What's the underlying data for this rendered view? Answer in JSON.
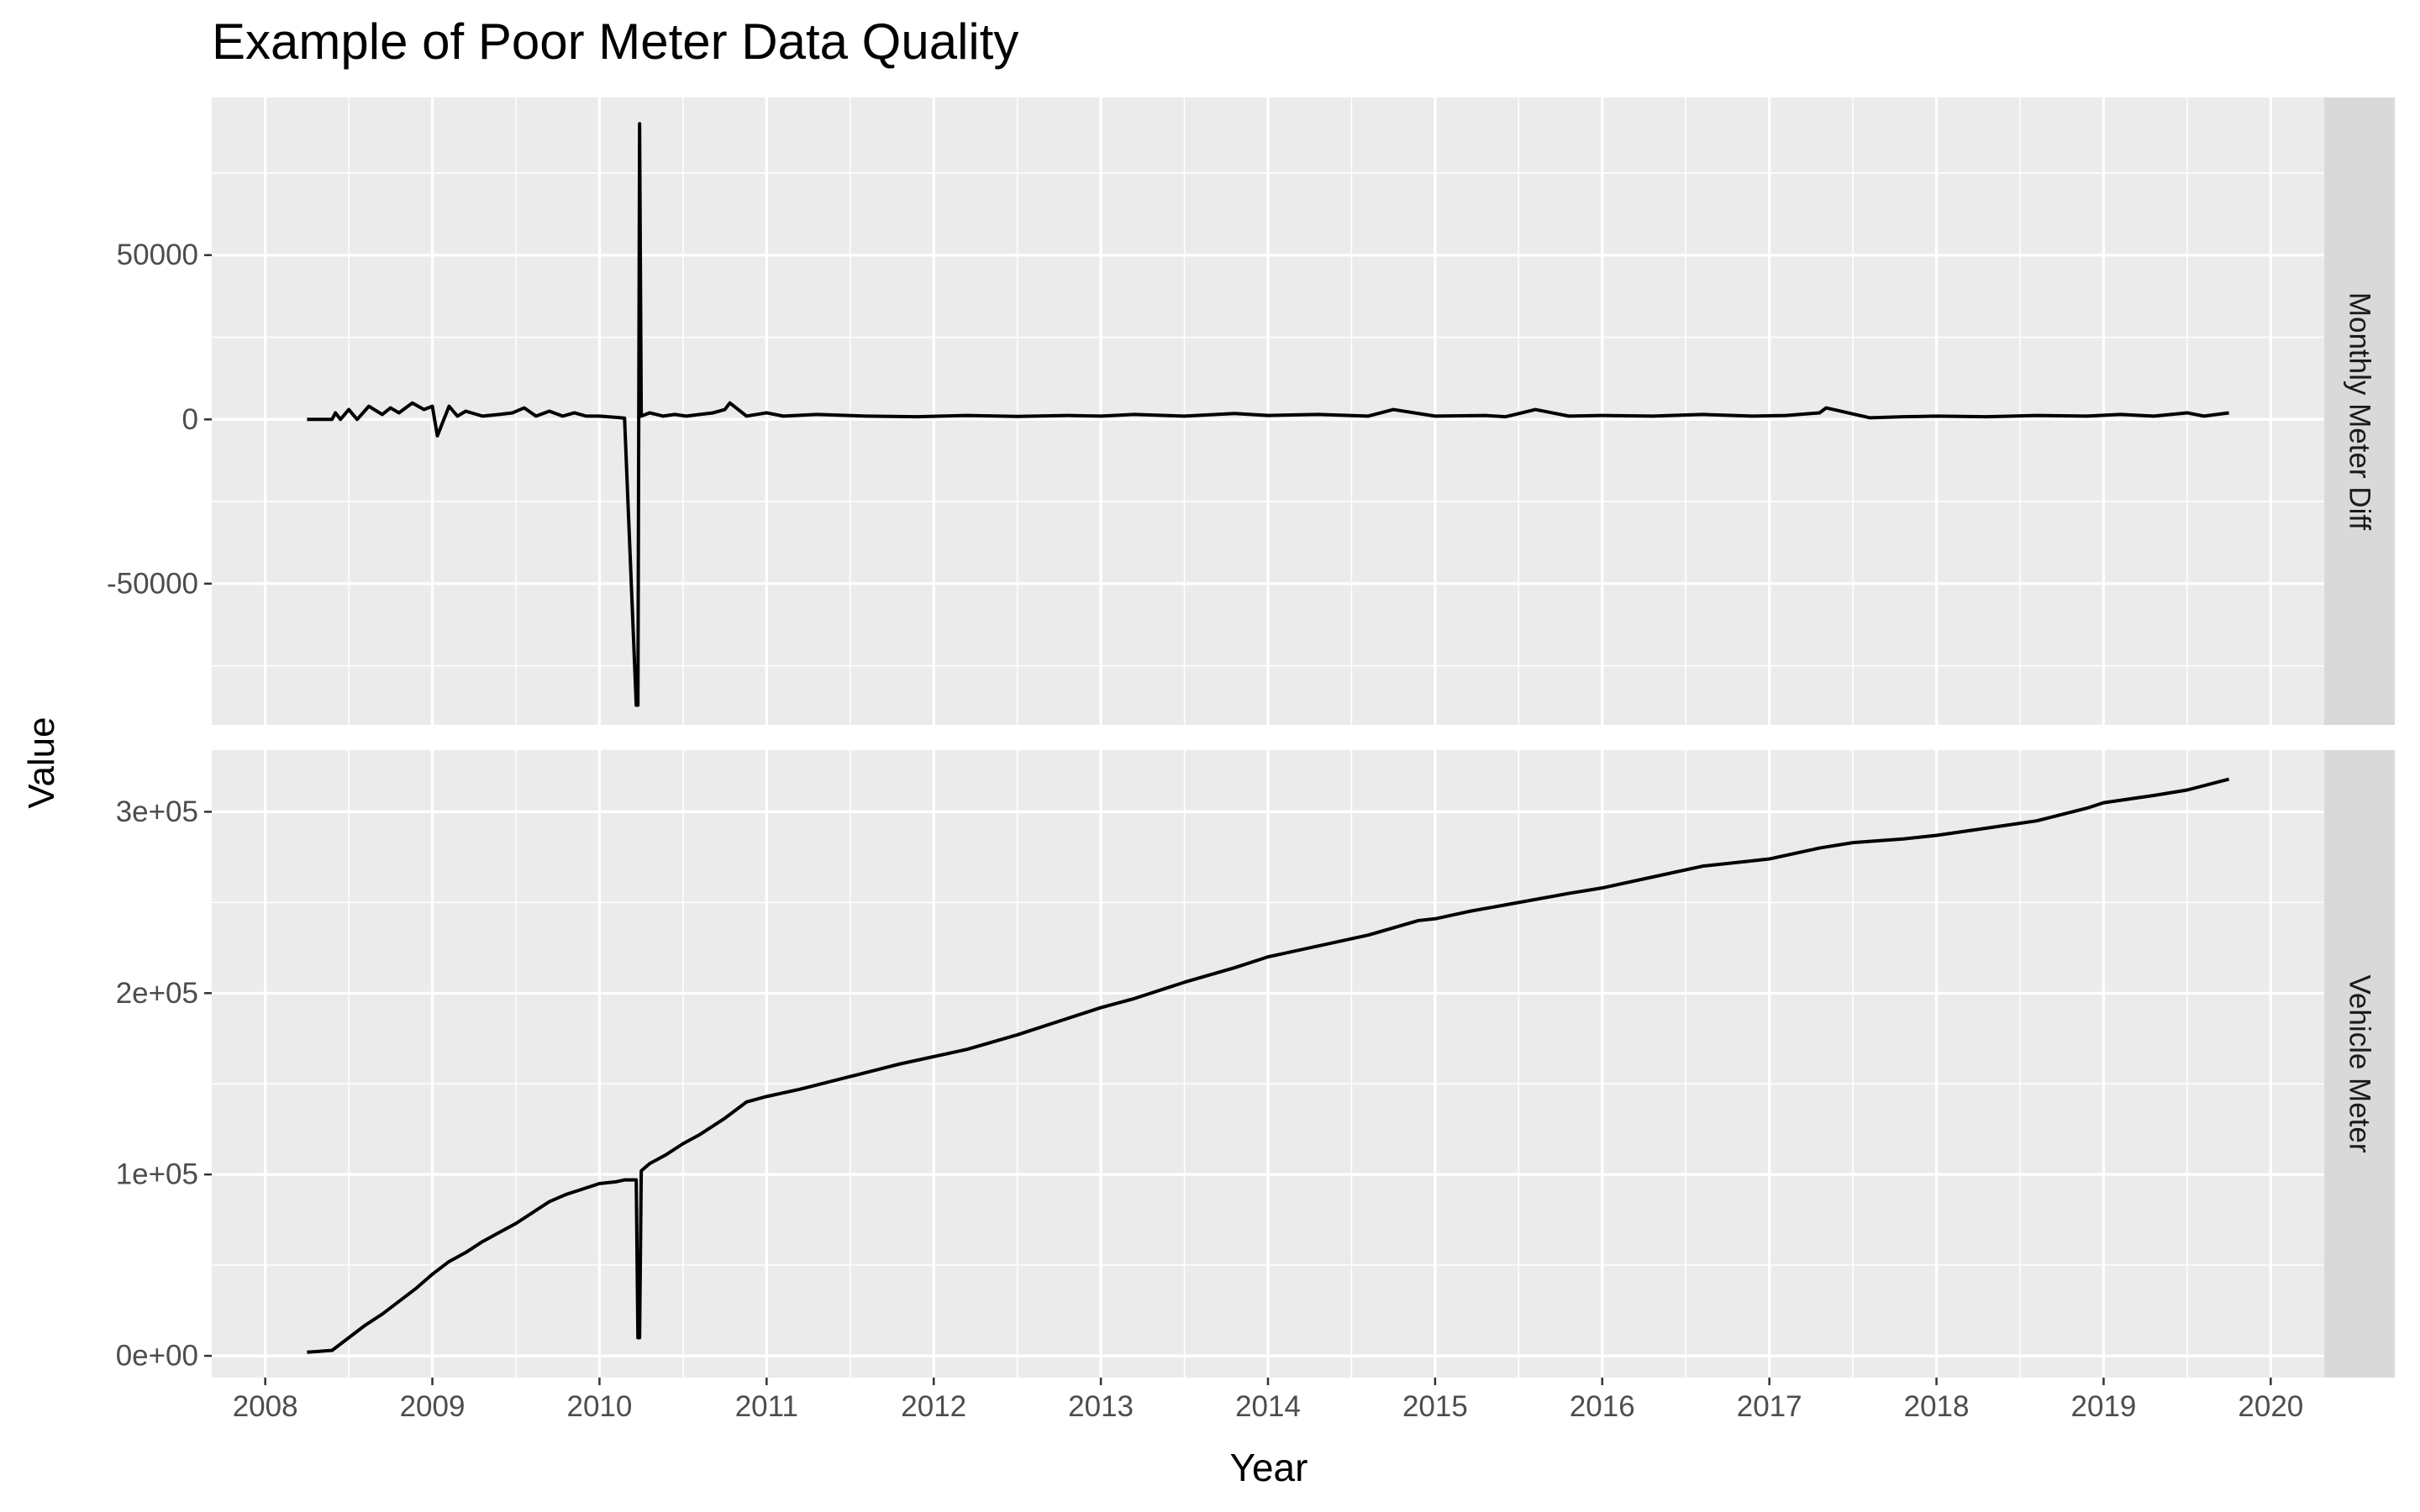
{
  "chart_data": {
    "type": "line",
    "title": "Example of Poor Meter Data Quality",
    "xlabel": "Year",
    "ylabel": "Value",
    "xlim": [
      2007.68,
      2020.32
    ],
    "x_ticks": [
      2008,
      2009,
      2010,
      2011,
      2012,
      2013,
      2014,
      2015,
      2016,
      2017,
      2018,
      2019,
      2020
    ],
    "grid": true,
    "legend": "none",
    "line_color": "#000000",
    "panel_background": "#EBEBEB",
    "strip_background": "#D9D9D9",
    "panels": [
      {
        "strip_label": "Monthly Meter Diff",
        "ylim": [
          -93000,
          98000
        ],
        "y_ticks": [
          -50000,
          0,
          50000
        ],
        "y_tick_labels": [
          "-50000",
          "0",
          "50000"
        ],
        "x": [
          2008.25,
          2008.33,
          2008.4,
          2008.42,
          2008.45,
          2008.5,
          2008.55,
          2008.62,
          2008.7,
          2008.75,
          2008.8,
          2008.88,
          2008.95,
          2009.0,
          2009.03,
          2009.1,
          2009.15,
          2009.2,
          2009.3,
          2009.4,
          2009.48,
          2009.55,
          2009.62,
          2009.7,
          2009.78,
          2009.85,
          2009.92,
          2010.0,
          2010.1,
          2010.15,
          2010.22,
          2010.23,
          2010.24,
          2010.25,
          2010.3,
          2010.38,
          2010.45,
          2010.52,
          2010.6,
          2010.68,
          2010.75,
          2010.78,
          2010.88,
          2011.0,
          2011.1,
          2011.3,
          2011.6,
          2011.9,
          2012.2,
          2012.5,
          2012.8,
          2013.0,
          2013.2,
          2013.5,
          2013.8,
          2014.0,
          2014.3,
          2014.6,
          2014.75,
          2015.0,
          2015.3,
          2015.42,
          2015.6,
          2015.7,
          2015.8,
          2016.0,
          2016.3,
          2016.6,
          2016.9,
          2017.1,
          2017.3,
          2017.34,
          2017.6,
          2017.8,
          2018.0,
          2018.3,
          2018.6,
          2018.9,
          2019.1,
          2019.3,
          2019.5,
          2019.6,
          2019.75
        ],
        "y": [
          0,
          0,
          0,
          2000,
          0,
          3000,
          0,
          4000,
          1500,
          3500,
          2000,
          5000,
          3000,
          4000,
          -5000,
          4000,
          1000,
          2500,
          1000,
          1500,
          2000,
          3500,
          1000,
          2500,
          1000,
          2000,
          1000,
          1000,
          600,
          400,
          -87000,
          -87000,
          90000,
          1000,
          2000,
          1000,
          1500,
          1000,
          1500,
          2000,
          3000,
          5000,
          1000,
          2000,
          1000,
          1500,
          1000,
          800,
          1200,
          900,
          1200,
          1000,
          1500,
          1000,
          1800,
          1200,
          1500,
          1000,
          3000,
          1000,
          1200,
          800,
          3000,
          2000,
          1000,
          1200,
          1000,
          1500,
          1000,
          1200,
          2000,
          3500,
          500,
          800,
          1000,
          800,
          1200,
          1000,
          1500,
          1000,
          2000,
          1000,
          2000
        ]
      },
      {
        "strip_label": "Vehicle Meter",
        "ylim": [
          -12000,
          334000
        ],
        "y_ticks": [
          0,
          100000,
          200000,
          300000
        ],
        "y_tick_labels": [
          "0e+00",
          "1e+05",
          "2e+05",
          "3e+05"
        ],
        "x": [
          2008.25,
          2008.4,
          2008.5,
          2008.6,
          2008.7,
          2008.8,
          2008.9,
          2009.0,
          2009.1,
          2009.2,
          2009.3,
          2009.4,
          2009.5,
          2009.6,
          2009.7,
          2009.8,
          2009.9,
          2010.0,
          2010.1,
          2010.15,
          2010.22,
          2010.23,
          2010.24,
          2010.25,
          2010.3,
          2010.4,
          2010.5,
          2010.6,
          2010.75,
          2010.88,
          2011.0,
          2011.2,
          2011.5,
          2011.8,
          2012.0,
          2012.2,
          2012.5,
          2012.8,
          2013.0,
          2013.2,
          2013.5,
          2013.8,
          2014.0,
          2014.3,
          2014.6,
          2014.75,
          2014.9,
          2015.0,
          2015.2,
          2015.5,
          2015.8,
          2016.0,
          2016.3,
          2016.6,
          2016.9,
          2017.0,
          2017.3,
          2017.5,
          2017.8,
          2018.0,
          2018.3,
          2018.6,
          2018.9,
          2019.0,
          2019.3,
          2019.5,
          2019.75
        ],
        "y": [
          2000,
          3000,
          10000,
          17000,
          23000,
          30000,
          37000,
          45000,
          52000,
          57000,
          63000,
          68000,
          73000,
          79000,
          85000,
          89000,
          92000,
          95000,
          96000,
          97000,
          97000,
          10000,
          10000,
          102000,
          106000,
          111000,
          117000,
          122000,
          131000,
          140000,
          143000,
          147000,
          154000,
          161000,
          165000,
          169000,
          177000,
          186000,
          192000,
          197000,
          206000,
          214000,
          220000,
          226000,
          232000,
          236000,
          240000,
          241000,
          245000,
          250000,
          255000,
          258000,
          264000,
          270000,
          273000,
          274000,
          280000,
          283000,
          285000,
          287000,
          291000,
          295000,
          302000,
          305000,
          309000,
          312000,
          318000
        ]
      }
    ]
  }
}
